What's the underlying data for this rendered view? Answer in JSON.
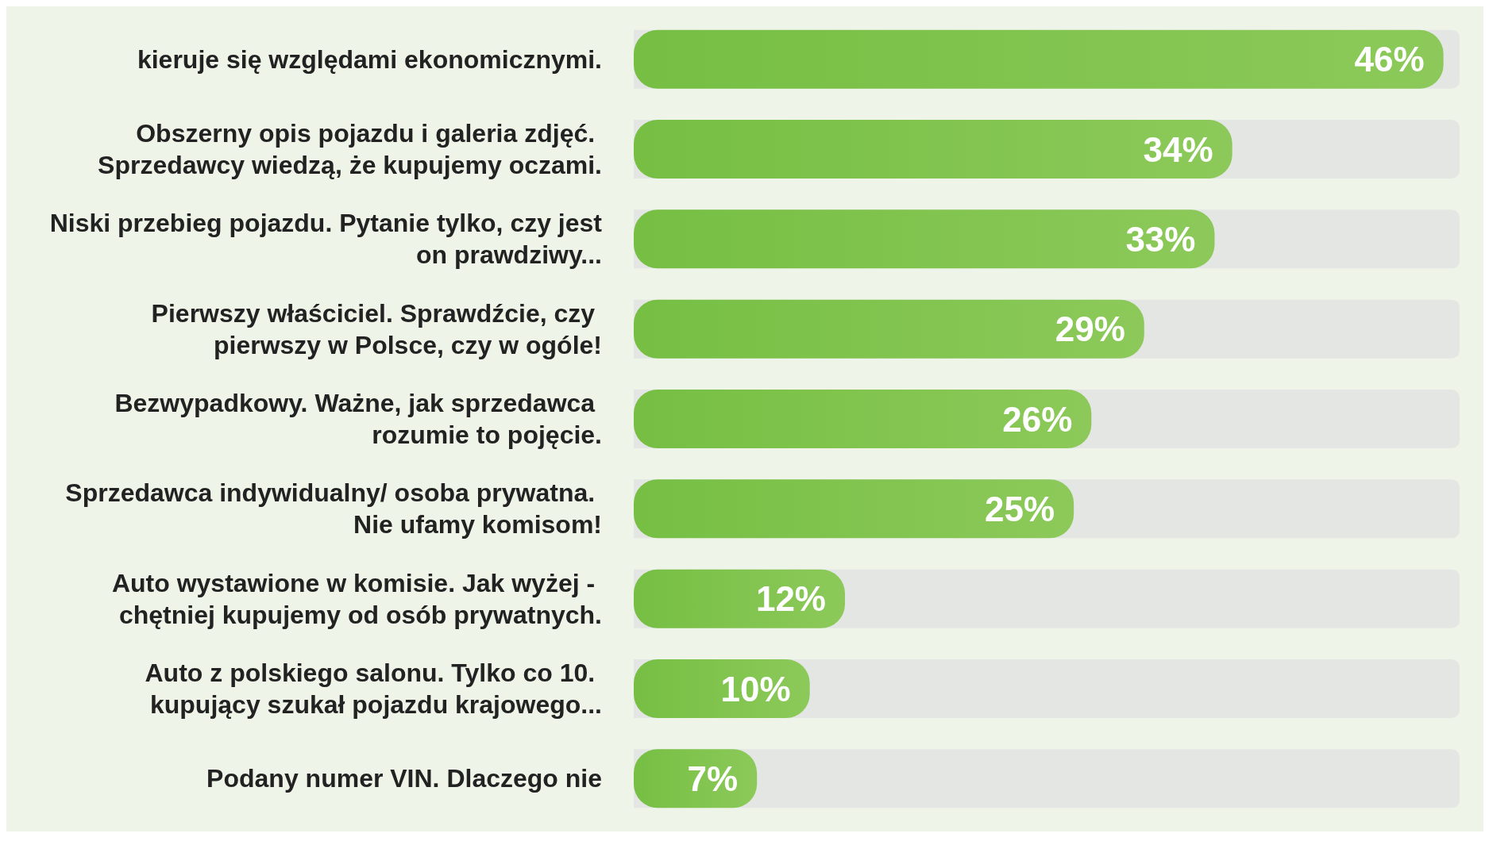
{
  "chart_data": {
    "type": "bar",
    "orientation": "horizontal",
    "color": "#8cc95a",
    "value_labels": [
      "46%",
      "34%",
      "33%",
      "29%",
      "26%",
      "25%",
      "12%",
      "10%",
      "7%"
    ],
    "categories": [
      "kieruje się względami ekonomicznymi.",
      "Obszerny opis pojazdu i galeria zdjęć. Sprzedawcy wiedzą, że kupujemy oczami.",
      "Niski przebieg pojazdu. Pytanie tylko, czy jest on prawdziwy...",
      "Pierwszy właściciel. Sprawdźcie, czy pierwszy w Polsce, czy w ogóle!",
      "Bezwypadkowy. Ważne, jak sprzedawca rozumie to pojęcie.",
      "Sprzedawca indywidualny/ osoba prywatna. Nie ufamy komisom!",
      "Auto wystawione w komisie. Jak wyżej - chętniej kupujemy od osób prywatnych.",
      "Auto z polskiego salonu. Tylko co 10. kupujący szukał pojazdu krajowego...",
      "Podany numer VIN. Dlaczego nie"
    ],
    "values": [
      46,
      34,
      33,
      29,
      26,
      25,
      12,
      10,
      7
    ]
  }
}
